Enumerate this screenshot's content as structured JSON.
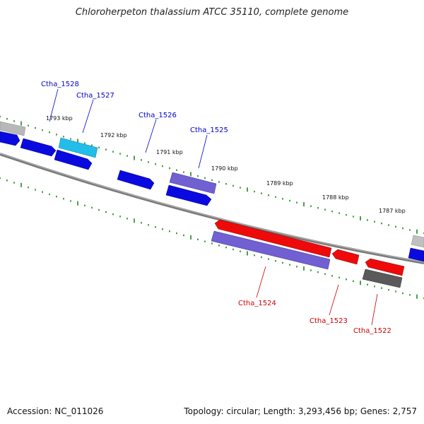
{
  "title": "Chloroherpeton thalassium ATCC 35110, complete genome",
  "footer": {
    "accession": "Accession: NC_011026",
    "summary": "Topology: circular; Length: 3,293,456 bp; Genes: 2,757"
  },
  "ticks": [
    {
      "label": "1793 kbp"
    },
    {
      "label": "1792 kbp"
    },
    {
      "label": "1791 kbp"
    },
    {
      "label": "1790 kbp"
    },
    {
      "label": "1789 kbp"
    },
    {
      "label": "1788 kbp"
    },
    {
      "label": "1787 kbp"
    }
  ],
  "genes": [
    {
      "label": "Ctha_1528",
      "strand": "forward"
    },
    {
      "label": "Ctha_1527",
      "strand": "forward"
    },
    {
      "label": "Ctha_1526",
      "strand": "forward"
    },
    {
      "label": "Ctha_1525",
      "strand": "forward"
    },
    {
      "label": "Ctha_1524",
      "strand": "reverse"
    },
    {
      "label": "Ctha_1523",
      "strand": "reverse"
    },
    {
      "label": "Ctha_1522",
      "strand": "reverse"
    }
  ],
  "colors": {
    "forward_label": "#0000cc",
    "reverse_label": "#cc0000",
    "cds_blue": "#0a0ae0",
    "cds_cyan": "#22bde8",
    "cds_purple": "#6a5ad0",
    "cds_red": "#ee0a0a",
    "cds_grey": "#b0b0b0",
    "cds_darkgrey": "#555555",
    "backbone": "#808080",
    "tick_green": "#1a8a1a"
  }
}
